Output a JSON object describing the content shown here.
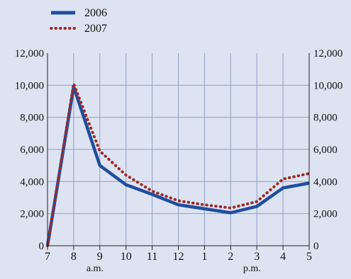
{
  "chart_data": {
    "type": "line",
    "categories": [
      "7",
      "8",
      "9",
      "10",
      "11",
      "12",
      "1",
      "2",
      "3",
      "4",
      "5"
    ],
    "period_labels": [
      "a.m.",
      "p.m."
    ],
    "ylim": [
      0,
      12000
    ],
    "yticks": [
      "0",
      "2,000",
      "4,000",
      "6,000",
      "8,000",
      "10,000",
      "12,000"
    ],
    "grid": true,
    "legend_position": "top-left",
    "series": [
      {
        "name": "2006",
        "color": "#1f4e9e",
        "style": "solid",
        "values": [
          0,
          9900,
          5000,
          3800,
          3200,
          2550,
          2300,
          2050,
          2450,
          3600,
          3900
        ]
      },
      {
        "name": "2007",
        "color": "#9b2a2a",
        "style": "dotted",
        "values": [
          0,
          10100,
          5900,
          4400,
          3400,
          2800,
          2550,
          2350,
          2750,
          4150,
          4500
        ]
      }
    ],
    "title": "",
    "xlabel": "",
    "ylabel": ""
  }
}
